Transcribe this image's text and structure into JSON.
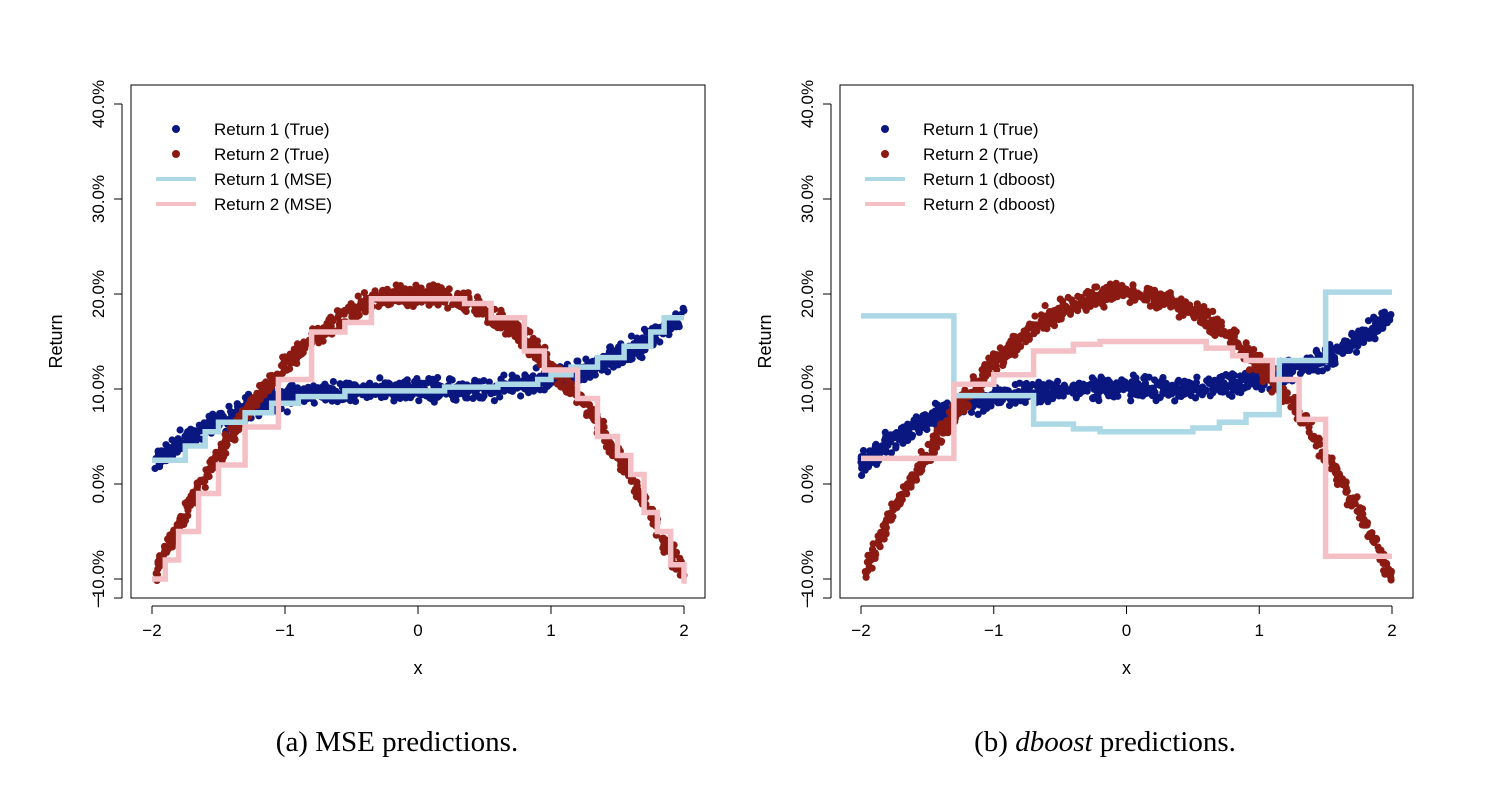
{
  "colors": {
    "return1_true": "#0a1780",
    "return2_true": "#8b1a12",
    "return1_pred": "#add8e6",
    "return2_pred": "#f4c0c6"
  },
  "panels": [
    {
      "caption_prefix": "(a) ",
      "caption_emph": "MSE",
      "caption_emph_italic": false,
      "caption_suffix": " predictions.",
      "legend": [
        "Return 1 (True)",
        "Return 2 (True)",
        "Return 1 (MSE)",
        "Return 2 (MSE)"
      ]
    },
    {
      "caption_prefix": "(b) ",
      "caption_emph": "dboost",
      "caption_emph_italic": true,
      "caption_suffix": " predictions.",
      "legend": [
        "Return 1 (True)",
        "Return 2 (True)",
        "Return 1 (dboost)",
        "Return 2 (dboost)"
      ]
    }
  ],
  "chart_data": [
    {
      "type": "scatter",
      "xlabel": "x",
      "ylabel": "Return",
      "xlim": [
        -2,
        2
      ],
      "ylim": [
        -12,
        42
      ],
      "x_ticks": [
        -2,
        -1,
        0,
        1,
        2
      ],
      "x_tick_labels": [
        "−2",
        "−1",
        "0",
        "1",
        "2"
      ],
      "y_ticks": [
        -12,
        -10,
        0,
        10,
        20,
        30,
        40
      ],
      "y_tick_labels": [
        "−",
        "−10.0%",
        "0.0%",
        "10.0%",
        "20.0%",
        "30.0%",
        "40.0%"
      ],
      "legend_position": "top-left",
      "grid": false,
      "series": [
        {
          "name": "Return 1 (True)",
          "kind": "points",
          "function": "10 + 1.0*x^3",
          "x_range": [
            -2,
            2
          ],
          "noise_sd": 0.55
        },
        {
          "name": "Return 2 (True)",
          "kind": "points",
          "function": "20 - 7.5*x^2",
          "x_range": [
            -1.97,
            2
          ],
          "noise_sd": 0.55
        },
        {
          "name": "Return 1 (MSE)",
          "kind": "step",
          "x": [
            -2.0,
            -1.75,
            -1.6,
            -1.5,
            -1.3,
            -1.1,
            -0.9,
            -0.55,
            0.2,
            0.6,
            0.9,
            1.0,
            1.15,
            1.35,
            1.55,
            1.75,
            1.85,
            2.0
          ],
          "y": [
            2.5,
            4.0,
            5.5,
            6.5,
            7.5,
            8.5,
            9.2,
            9.8,
            10.2,
            10.5,
            11.0,
            11.5,
            12.3,
            13.3,
            14.5,
            16.0,
            17.5,
            17.5
          ]
        },
        {
          "name": "Return 2 (MSE)",
          "kind": "step",
          "x": [
            -2.0,
            -1.9,
            -1.8,
            -1.65,
            -1.5,
            -1.3,
            -1.05,
            -0.8,
            -0.55,
            -0.35,
            0.0,
            0.35,
            0.55,
            0.8,
            0.95,
            1.2,
            1.35,
            1.5,
            1.6,
            1.7,
            1.8,
            1.9,
            2.0
          ],
          "y": [
            -10.0,
            -8.0,
            -5.0,
            -1.0,
            2.0,
            6.0,
            11.0,
            16.0,
            17.0,
            19.5,
            19.5,
            19.0,
            17.5,
            14.0,
            12.0,
            9.0,
            5.0,
            3.0,
            1.0,
            -3.0,
            -5.0,
            -8.5,
            -10.5
          ]
        }
      ]
    },
    {
      "type": "scatter",
      "xlabel": "x",
      "ylabel": "Return",
      "xlim": [
        -2,
        2
      ],
      "ylim": [
        -12,
        42
      ],
      "x_ticks": [
        -2,
        -1,
        0,
        1,
        2
      ],
      "x_tick_labels": [
        "−2",
        "−1",
        "0",
        "1",
        "2"
      ],
      "y_ticks": [
        -12,
        -10,
        0,
        10,
        20,
        30,
        40
      ],
      "y_tick_labels": [
        "−",
        "−10.0%",
        "0.0%",
        "10.0%",
        "20.0%",
        "30.0%",
        "40.0%"
      ],
      "legend_position": "top-left",
      "grid": false,
      "series": [
        {
          "name": "Return 1 (True)",
          "kind": "points",
          "function": "10 + 1.0*x^3",
          "x_range": [
            -2,
            2
          ],
          "noise_sd": 0.55
        },
        {
          "name": "Return 2 (True)",
          "kind": "points",
          "function": "20 - 7.5*x^2",
          "x_range": [
            -1.97,
            2
          ],
          "noise_sd": 0.55
        },
        {
          "name": "Return 1 (dboost)",
          "kind": "step",
          "x": [
            -2.0,
            -1.3,
            -0.7,
            -0.4,
            -0.2,
            0.5,
            0.7,
            0.9,
            1.15,
            1.5,
            2.0
          ],
          "y": [
            17.7,
            9.3,
            6.3,
            5.8,
            5.5,
            5.9,
            6.5,
            7.3,
            13.0,
            20.2,
            20.2
          ]
        },
        {
          "name": "Return 2 (dboost)",
          "kind": "step",
          "x": [
            -2.0,
            -1.3,
            -1.0,
            -0.7,
            -0.4,
            -0.2,
            0.6,
            0.8,
            0.9,
            1.1,
            1.3,
            1.5,
            2.0
          ],
          "y": [
            2.7,
            10.5,
            11.5,
            14.0,
            14.7,
            15.0,
            14.3,
            13.5,
            13.0,
            11.0,
            6.8,
            -7.6,
            -7.6
          ]
        }
      ]
    }
  ]
}
